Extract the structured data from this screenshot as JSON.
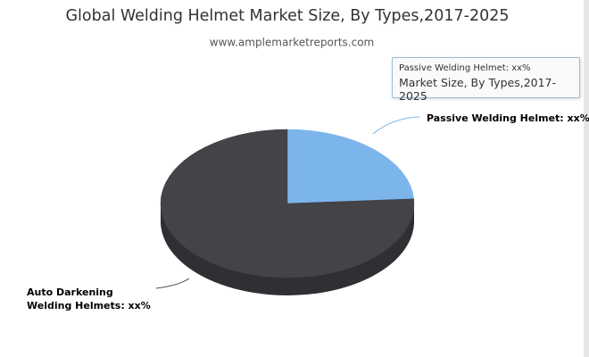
{
  "chart_data": {
    "type": "pie3d",
    "title": "Global Welding Helmet Market Size, By Types,2017-2025",
    "subtitle": "www.amplemarketreports.com",
    "categories": [
      "Passive Welding Helmet",
      "Auto Darkening Welding Helmets"
    ],
    "values": [
      24,
      76
    ],
    "data_labels": [
      "Passive Welding Helmet: xx%",
      "Auto Darkening Welding Helmets: xx%"
    ],
    "colors": [
      "#7cb5ec",
      "#434348"
    ],
    "tooltip": {
      "title": "Passive Welding Helmet: xx%",
      "text": "Market Size, By Types,2017-2025"
    }
  }
}
